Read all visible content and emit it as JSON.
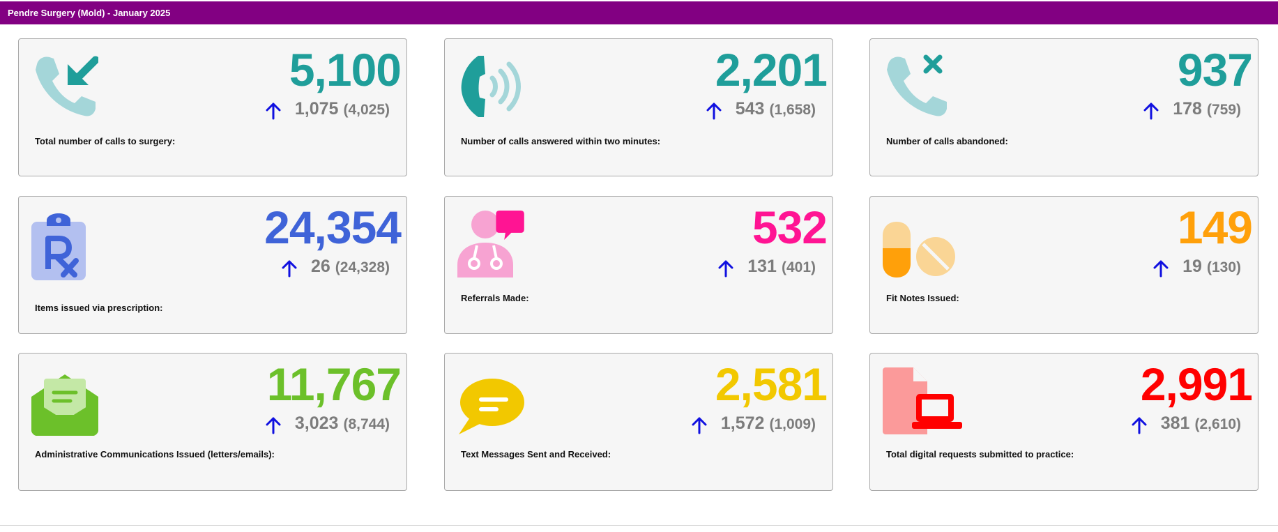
{
  "header": {
    "title": "Pendre Surgery (Mold) - January 2025"
  },
  "colors": {
    "header_bg": "#820082",
    "up_arrow": "#1010e0",
    "change_text": "#7c7c7c"
  },
  "cards": [
    {
      "label": "Total number of calls to surgery:",
      "value": "5,100",
      "change": "1,075",
      "previous": "(4,025)",
      "trend": "up",
      "color": "#1f9e9a",
      "icon": "incoming-call-icon"
    },
    {
      "label": "Number of calls answered within two minutes:",
      "value": "2,201",
      "change": "543",
      "previous": "(1,658)",
      "trend": "up",
      "color": "#1f9e9a",
      "icon": "phone-ringing-icon"
    },
    {
      "label": "Number of calls abandoned:",
      "value": "937",
      "change": "178",
      "previous": "(759)",
      "trend": "up",
      "color": "#1f9e9a",
      "icon": "missed-call-icon"
    },
    {
      "label": "Items issued via prescription:",
      "value": "24,354",
      "change": "26",
      "previous": "(24,328)",
      "trend": "up",
      "color": "#3f63d8",
      "icon": "prescription-clipboard-icon"
    },
    {
      "label": "Referrals Made:",
      "value": "532",
      "change": "131",
      "previous": "(401)",
      "trend": "up",
      "color": "#ff1493",
      "icon": "doctor-chat-icon"
    },
    {
      "label": "Fit Notes Issued:",
      "value": "149",
      "change": "19",
      "previous": "(130)",
      "trend": "up",
      "color": "#ffa00a",
      "icon": "pills-icon"
    },
    {
      "label": "Administrative Communications Issued (letters/emails):",
      "value": "11,767",
      "change": "3,023",
      "previous": "(8,744)",
      "trend": "up",
      "color": "#6cc02a",
      "icon": "open-envelope-icon"
    },
    {
      "label": "Text Messages Sent and Received:",
      "value": "2,581",
      "change": "1,572",
      "previous": "(1,009)",
      "trend": "up",
      "color": "#f2c800",
      "icon": "speech-bubble-icon"
    },
    {
      "label": "Total digital requests submitted to practice:",
      "value": "2,991",
      "change": "381",
      "previous": "(2,610)",
      "trend": "up",
      "color": "#ff0000",
      "icon": "laptop-document-icon"
    }
  ]
}
